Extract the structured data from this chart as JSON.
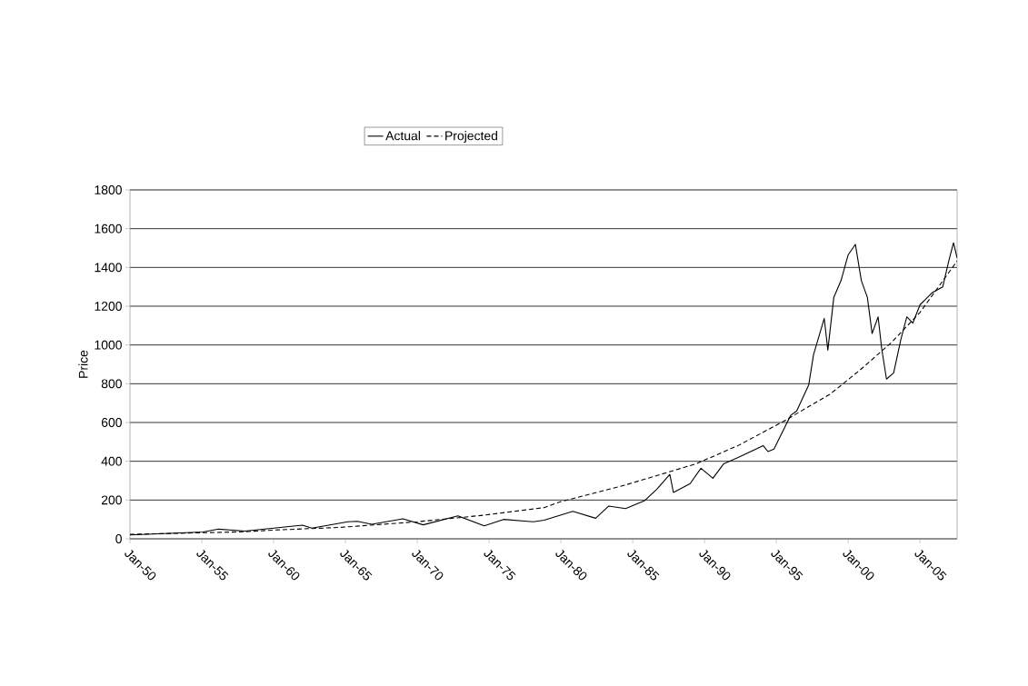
{
  "chart_data": {
    "type": "line",
    "ylabel": "Price",
    "xlim": [
      "1950-01",
      "2007-08"
    ],
    "ylim": [
      0,
      1800
    ],
    "xticks": [
      {
        "value": "1950-01",
        "label": "Jan-50"
      },
      {
        "value": "1955-01",
        "label": "Jan-55"
      },
      {
        "value": "1960-01",
        "label": "Jan-60"
      },
      {
        "value": "1965-01",
        "label": "Jan-65"
      },
      {
        "value": "1970-01",
        "label": "Jan-70"
      },
      {
        "value": "1975-01",
        "label": "Jan-75"
      },
      {
        "value": "1980-01",
        "label": "Jan-80"
      },
      {
        "value": "1985-01",
        "label": "Jan-85"
      },
      {
        "value": "1990-01",
        "label": "Jan-90"
      },
      {
        "value": "1995-01",
        "label": "Jan-95"
      },
      {
        "value": "2000-01",
        "label": "Jan-00"
      },
      {
        "value": "2005-01",
        "label": "Jan-05"
      }
    ],
    "yticks": [
      0,
      200,
      400,
      600,
      800,
      1000,
      1200,
      1400,
      1600,
      1800
    ],
    "grid": "y",
    "legend": "top",
    "series": [
      {
        "name": "Actual",
        "color": "#000000",
        "line_style": "solid",
        "x": [
          "1950-01",
          "1955-02",
          "1956-03",
          "1958-01",
          "1962-01",
          "1962-09",
          "1965-03",
          "1965-11",
          "1966-11",
          "1969-01",
          "1970-06",
          "1972-11",
          "1974-09",
          "1976-01",
          "1977-09",
          "1978-02",
          "1978-11",
          "1980-11",
          "1982-06",
          "1983-05",
          "1984-07",
          "1985-11",
          "1986-09",
          "1987-08",
          "1987-11",
          "1989-01",
          "1989-10",
          "1990-08",
          "1991-05",
          "1992-05",
          "1994-02",
          "1994-06",
          "1994-11",
          "1996-01",
          "1996-06",
          "1997-04",
          "1997-08",
          "1998-05",
          "1998-08",
          "1999-01",
          "1999-07",
          "2000-01",
          "2000-07",
          "2000-12",
          "2001-05",
          "2001-09",
          "2002-02",
          "2002-05",
          "2002-09",
          "2003-03",
          "2003-09",
          "2004-02",
          "2004-07",
          "2005-01",
          "2005-11",
          "2006-08",
          "2007-01",
          "2007-05",
          "2007-08"
        ],
        "values": [
          20,
          35,
          50,
          40,
          70,
          55,
          88,
          90,
          75,
          103,
          72,
          118,
          67,
          100,
          90,
          88,
          96,
          142,
          106,
          169,
          156,
          197,
          255,
          332,
          239,
          285,
          364,
          312,
          387,
          419,
          481,
          450,
          463,
          637,
          660,
          793,
          949,
          1137,
          973,
          1246,
          1332,
          1465,
          1519,
          1332,
          1246,
          1059,
          1145,
          981,
          824,
          856,
          1028,
          1145,
          1113,
          1207,
          1269,
          1300,
          1433,
          1527,
          1449
        ]
      },
      {
        "name": "Projected",
        "color": "#000000",
        "line_style": "dashed",
        "x": [
          "1950-01",
          "1957-11",
          "1960-01",
          "1964-09",
          "1970-01",
          "1974-09",
          "1978-11",
          "1980-01",
          "1984-07",
          "1989-06",
          "1992-05",
          "1995-07",
          "1998-10",
          "2000-11",
          "2003-01",
          "2005-01",
          "2007-08"
        ],
        "values": [
          23,
          36,
          45,
          59,
          88,
          122,
          161,
          192,
          278,
          387,
          481,
          606,
          747,
          871,
          1012,
          1168,
          1433
        ]
      }
    ]
  }
}
